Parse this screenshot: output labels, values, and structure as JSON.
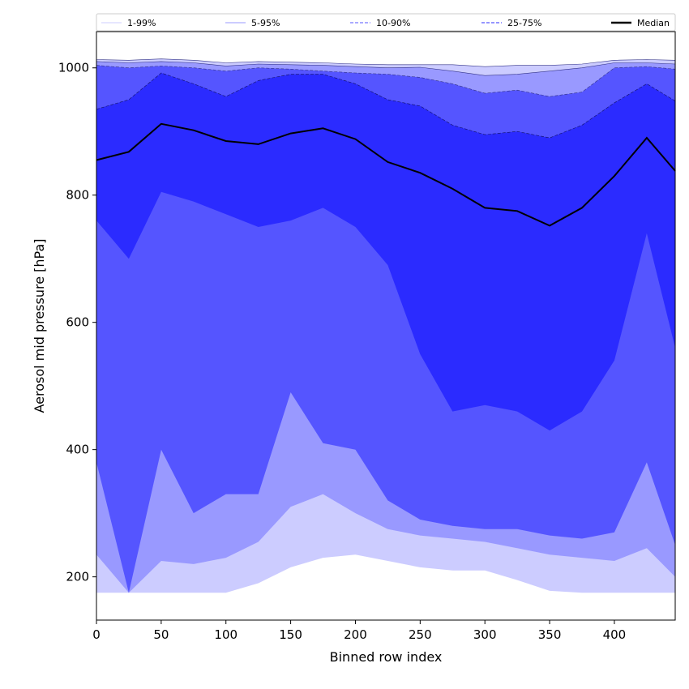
{
  "chart_data": {
    "type": "area",
    "title": "",
    "xlabel": "Binned row index",
    "ylabel": "Aerosol mid pressure [hPa]",
    "xlim": [
      0,
      447
    ],
    "ylim": [
      132,
      1057
    ],
    "xticks": [
      0,
      50,
      100,
      150,
      200,
      250,
      300,
      350,
      400
    ],
    "yticks": [
      200,
      400,
      600,
      800,
      1000
    ],
    "grid": false,
    "legend_position": "top",
    "x": [
      0,
      25,
      50,
      75,
      100,
      125,
      150,
      175,
      200,
      225,
      250,
      275,
      300,
      325,
      350,
      375,
      400,
      425,
      447
    ],
    "series": [
      {
        "name": "1-99%",
        "color": "#ccccff",
        "line_style": "solid",
        "lower": [
          175,
          175,
          175,
          175,
          175,
          190,
          215,
          230,
          235,
          225,
          215,
          210,
          210,
          195,
          178,
          175,
          175,
          175,
          175
        ],
        "upper": [
          1013,
          1012,
          1014,
          1012,
          1008,
          1010,
          1009,
          1008,
          1006,
          1005,
          1005,
          1005,
          1002,
          1004,
          1004,
          1006,
          1012,
          1013,
          1012
        ]
      },
      {
        "name": "5-95%",
        "color": "#9999ff",
        "line_style": "solid",
        "lower": [
          235,
          175,
          225,
          220,
          230,
          255,
          310,
          330,
          300,
          275,
          265,
          260,
          255,
          245,
          235,
          230,
          225,
          245,
          200
        ],
        "upper": [
          1010,
          1008,
          1010,
          1008,
          1003,
          1006,
          1005,
          1004,
          1002,
          1000,
          1001,
          995,
          988,
          990,
          995,
          1000,
          1008,
          1008,
          1006
        ]
      },
      {
        "name": "10-90%",
        "color": "#5555ff",
        "line_style": "dashed",
        "lower": [
          380,
          175,
          400,
          300,
          330,
          330,
          490,
          410,
          400,
          320,
          290,
          280,
          275,
          275,
          265,
          260,
          270,
          380,
          250
        ],
        "upper": [
          1004,
          1000,
          1003,
          1000,
          995,
          1000,
          998,
          995,
          992,
          990,
          985,
          975,
          960,
          965,
          955,
          962,
          1000,
          1002,
          998
        ]
      },
      {
        "name": "25-75%",
        "color": "#2b2bff",
        "line_style": "dashed",
        "lower": [
          760,
          700,
          805,
          790,
          770,
          750,
          760,
          780,
          750,
          690,
          550,
          460,
          470,
          460,
          430,
          460,
          540,
          740,
          560
        ],
        "upper": [
          935,
          950,
          992,
          975,
          955,
          980,
          990,
          990,
          975,
          950,
          940,
          910,
          895,
          900,
          890,
          910,
          945,
          975,
          948
        ]
      }
    ],
    "median": {
      "name": "Median",
      "color": "#000000",
      "values": [
        855,
        868,
        912,
        902,
        885,
        880,
        897,
        905,
        888,
        852,
        835,
        810,
        780,
        775,
        752,
        780,
        830,
        890,
        838
      ]
    }
  }
}
